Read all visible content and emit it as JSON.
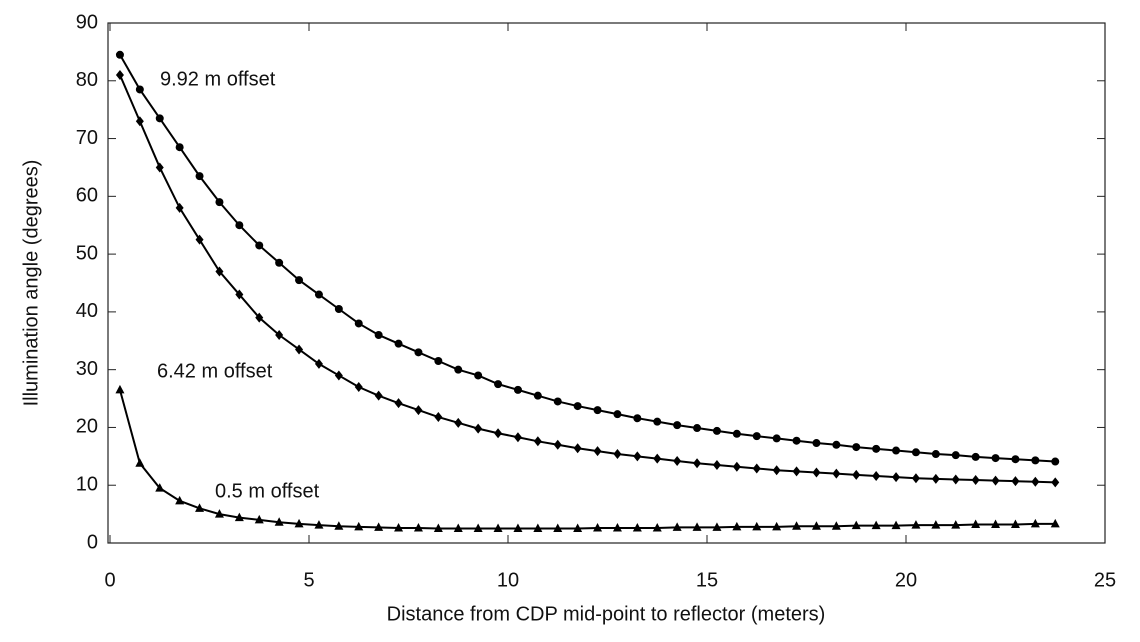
{
  "chart_data": {
    "type": "line",
    "x_label": "Distance from CDP mid-point to reflector (meters)",
    "y_label": "Illumination angle (degrees)",
    "x": [
      0.25,
      0.75,
      1.25,
      1.75,
      2.25,
      2.75,
      3.25,
      3.75,
      4.25,
      4.75,
      5.25,
      5.75,
      6.25,
      6.75,
      7.25,
      7.75,
      8.25,
      8.75,
      9.25,
      9.75,
      10.25,
      10.75,
      11.25,
      11.75,
      12.25,
      12.75,
      13.25,
      13.75,
      14.25,
      14.75,
      15.25,
      15.75,
      16.25,
      16.75,
      17.25,
      17.75,
      18.25,
      18.75,
      19.25,
      19.75,
      20.25,
      20.75,
      21.25,
      21.75,
      22.25,
      22.75,
      23.25,
      23.75
    ],
    "series": [
      {
        "name": "9.92 m offset",
        "color": "#000000",
        "marker": "circle",
        "values": [
          84.5,
          78.5,
          73.5,
          68.5,
          63.5,
          59,
          55,
          51.5,
          48.5,
          45.5,
          43,
          40.5,
          38,
          36,
          34.5,
          33,
          31.5,
          30,
          29,
          27.5,
          26.5,
          25.5,
          24.5,
          23.7,
          23,
          22.3,
          21.6,
          21,
          20.4,
          19.9,
          19.4,
          18.9,
          18.5,
          18.1,
          17.7,
          17.3,
          17,
          16.6,
          16.3,
          16,
          15.7,
          15.4,
          15.2,
          14.9,
          14.7,
          14.5,
          14.3,
          14.1
        ]
      },
      {
        "name": "6.42 m offset",
        "color": "#000000",
        "marker": "diamond",
        "values": [
          81,
          73,
          65,
          58,
          52.5,
          47,
          43,
          39,
          36,
          33.5,
          31,
          29,
          27,
          25.5,
          24.2,
          23,
          21.8,
          20.8,
          19.8,
          19,
          18.3,
          17.6,
          17,
          16.4,
          15.9,
          15.4,
          15,
          14.6,
          14.2,
          13.8,
          13.5,
          13.2,
          12.9,
          12.6,
          12.4,
          12.2,
          12,
          11.8,
          11.6,
          11.4,
          11.2,
          11.1,
          11,
          10.9,
          10.8,
          10.7,
          10.6,
          10.5
        ]
      },
      {
        "name": "0.5 m offset",
        "color": "#000000",
        "marker": "triangle",
        "values": [
          26.5,
          13.8,
          9.5,
          7.3,
          6,
          5,
          4.4,
          4,
          3.6,
          3.3,
          3.1,
          2.9,
          2.8,
          2.7,
          2.6,
          2.6,
          2.5,
          2.5,
          2.5,
          2.5,
          2.5,
          2.5,
          2.5,
          2.5,
          2.6,
          2.6,
          2.6,
          2.6,
          2.7,
          2.7,
          2.7,
          2.8,
          2.8,
          2.8,
          2.9,
          2.9,
          2.9,
          3,
          3,
          3,
          3.1,
          3.1,
          3.1,
          3.2,
          3.2,
          3.2,
          3.3,
          3.3
        ]
      }
    ],
    "xlim": [
      0,
      25
    ],
    "xticks": [
      0,
      5,
      10,
      15,
      20,
      25
    ],
    "ylim": [
      0,
      90
    ],
    "yticks": [
      0,
      10,
      20,
      30,
      40,
      50,
      60,
      70,
      80,
      90
    ],
    "grid": false
  }
}
